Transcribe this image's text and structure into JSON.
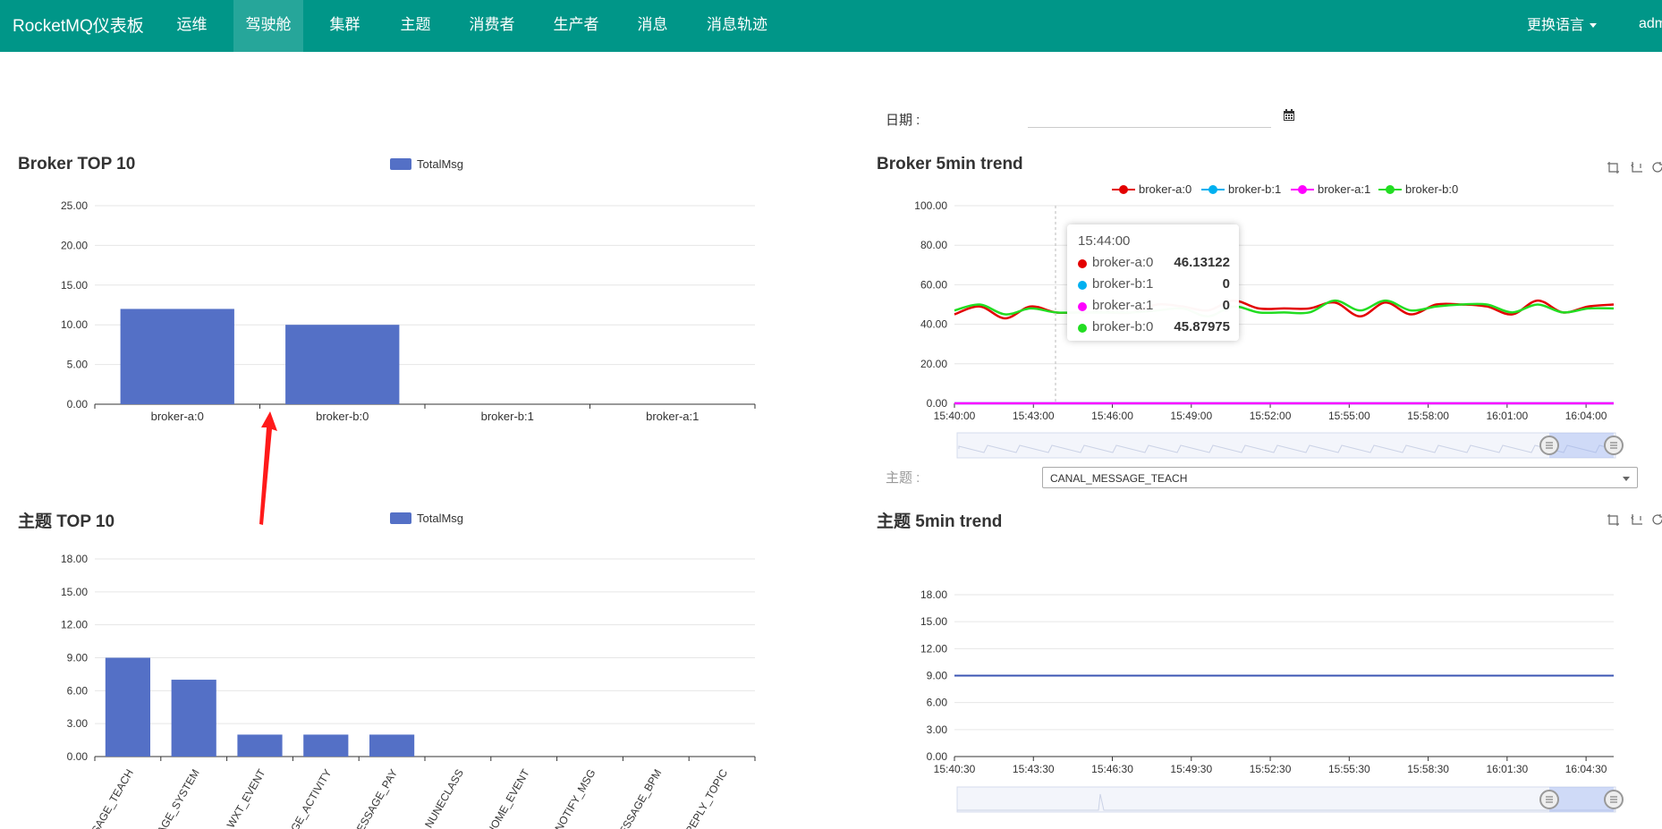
{
  "nav": {
    "brand": "RocketMQ仪表板",
    "items": [
      {
        "label": "运维"
      },
      {
        "label": "驾驶舱"
      },
      {
        "label": "集群"
      },
      {
        "label": "主题"
      },
      {
        "label": "消费者"
      },
      {
        "label": "生产者"
      },
      {
        "label": "消息"
      },
      {
        "label": "消息轨迹"
      }
    ],
    "language": "更换语言",
    "user": "adm"
  },
  "filters": {
    "date_label": "日期 :",
    "date_value": "",
    "topic_label": "主题 :",
    "topic_value": "CANAL_MESSAGE_TEACH"
  },
  "tooltip": {
    "time": "15:44:00",
    "rows": [
      {
        "name": "broker-a:0",
        "value": "46.13122",
        "color": "#e30000"
      },
      {
        "name": "broker-b:1",
        "value": "0",
        "color": "#00b0f0"
      },
      {
        "name": "broker-a:1",
        "value": "0",
        "color": "#ff00ff"
      },
      {
        "name": "broker-b:0",
        "value": "45.87975",
        "color": "#22dd22"
      }
    ]
  },
  "colors": {
    "nav_bg": "#009688",
    "nav_active": "#26a69a",
    "bar": "#5470c6",
    "line_blue": "#3b55b3"
  },
  "chart_data": [
    {
      "type": "bar",
      "title": "Broker TOP 10",
      "legend": [
        "TotalMsg"
      ],
      "categories": [
        "broker-a:0",
        "broker-b:0",
        "broker-b:1",
        "broker-a:1"
      ],
      "series": [
        {
          "name": "TotalMsg",
          "values": [
            12,
            10,
            0,
            0
          ]
        }
      ],
      "ylim": [
        0,
        25
      ],
      "yticks": [
        "0.00",
        "5.00",
        "10.00",
        "15.00",
        "20.00",
        "25.00"
      ]
    },
    {
      "type": "line",
      "title": "Broker 5min trend",
      "legend": [
        "broker-a:0",
        "broker-b:1",
        "broker-a:1",
        "broker-b:0"
      ],
      "xticks": [
        "15:40:00",
        "15:43:00",
        "15:46:00",
        "15:49:00",
        "15:52:00",
        "15:55:00",
        "15:58:00",
        "16:01:00",
        "16:04:00"
      ],
      "ylim": [
        0,
        100
      ],
      "yticks": [
        "0.00",
        "20.00",
        "40.00",
        "60.00",
        "80.00",
        "100.00"
      ],
      "series": [
        {
          "name": "broker-a:0",
          "color": "#e30000",
          "values": [
            45,
            49,
            43,
            49,
            46,
            46,
            46,
            46,
            50,
            49,
            47,
            52,
            48,
            48,
            48,
            51,
            44,
            51,
            45,
            50,
            50,
            49,
            45,
            52,
            46,
            49,
            50
          ]
        },
        {
          "name": "broker-b:1",
          "color": "#00b0f0",
          "values": [
            0,
            0,
            0,
            0,
            0,
            0,
            0,
            0,
            0,
            0,
            0,
            0,
            0,
            0,
            0,
            0,
            0,
            0,
            0,
            0,
            0,
            0,
            0,
            0,
            0,
            0,
            0
          ]
        },
        {
          "name": "broker-a:1",
          "color": "#ff00ff",
          "values": [
            0,
            0,
            0,
            0,
            0,
            0,
            0,
            0,
            0,
            0,
            0,
            0,
            0,
            0,
            0,
            0,
            0,
            0,
            0,
            0,
            0,
            0,
            0,
            0,
            0,
            0,
            0
          ]
        },
        {
          "name": "broker-b:0",
          "color": "#22dd22",
          "values": [
            47,
            50,
            45,
            48,
            46,
            46,
            46,
            46,
            47,
            48,
            44,
            49,
            46,
            46,
            46,
            52,
            47,
            52,
            47,
            49,
            50,
            50,
            46,
            50,
            46,
            48,
            48
          ]
        }
      ]
    },
    {
      "type": "bar",
      "title": "主题 TOP 10",
      "legend": [
        "TotalMsg"
      ],
      "categories": [
        "CANAL_MESSAGE_TEACH",
        "CANAL_MESSAGE_SYSTEM",
        "WXT_EVENT",
        "CANAL_MESSAGE_ACTIVITY",
        "CANAL_MESSAGE_PAY",
        "NUNECLASS",
        "HOME_EVENT",
        "NOTIFY_MSG",
        "MESSAGE_BPM",
        "REPLY_TOPIC"
      ],
      "tick_labels": [
        "SAGE_TEACH",
        "AGE_SYSTEM",
        "WXT_EVENT",
        "GE_ACTIVITY",
        "MESSAGE_PAY",
        "NUNECLASS",
        "HOME_EVENT",
        "NOTIFY_MSG",
        "ESSAGE_BPM",
        "REPLY_TOPIC"
      ],
      "series": [
        {
          "name": "TotalMsg",
          "values": [
            9,
            7,
            2,
            2,
            2,
            0,
            0,
            0,
            0,
            0
          ]
        }
      ],
      "ylim": [
        0,
        18
      ],
      "yticks": [
        "0.00",
        "3.00",
        "6.00",
        "9.00",
        "12.00",
        "15.00",
        "18.00"
      ]
    },
    {
      "type": "line",
      "title": "主题 5min trend",
      "xticks": [
        "15:40:30",
        "15:43:30",
        "15:46:30",
        "15:49:30",
        "15:52:30",
        "15:55:30",
        "15:58:30",
        "16:01:30",
        "16:04:30"
      ],
      "ylim": [
        0,
        18
      ],
      "yticks": [
        "0.00",
        "3.00",
        "6.00",
        "9.00",
        "12.00",
        "15.00",
        "18.00"
      ],
      "series": [
        {
          "color": "#3b55b3",
          "values": [
            9,
            9,
            9,
            9,
            9,
            9,
            9,
            9,
            9,
            9
          ]
        }
      ]
    }
  ]
}
